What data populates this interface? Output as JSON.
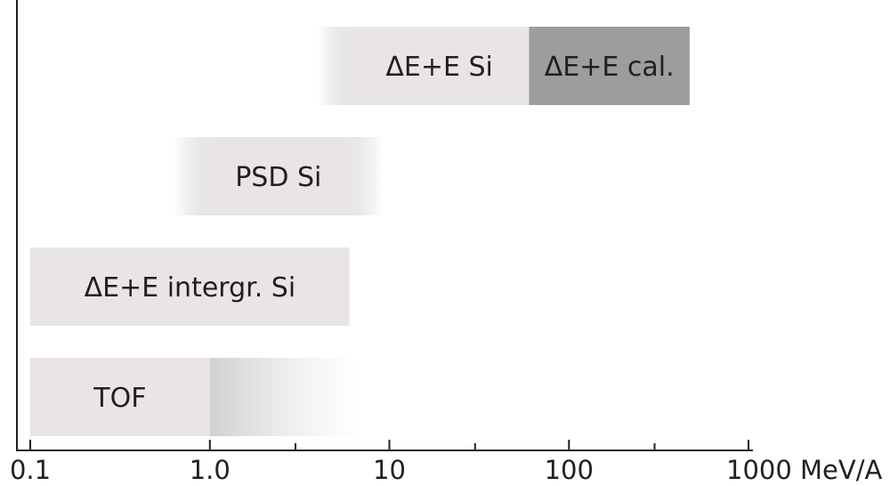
{
  "chart_data": {
    "type": "range-bar",
    "x_scale": "log",
    "xlim": [
      0.1,
      1000
    ],
    "x_ticks": [
      {
        "value": 0.1,
        "label": "0.1"
      },
      {
        "value": 1,
        "label": "1.0"
      },
      {
        "value": 10,
        "label": "10"
      },
      {
        "value": 100,
        "label": "100"
      },
      {
        "value": 1000,
        "label": "1000 MeV/A"
      }
    ],
    "x_minor_ticks": [
      3,
      30,
      300
    ],
    "bars": [
      {
        "label": "ΔE+E Si",
        "segments": [
          {
            "from": 4,
            "to": 6,
            "fill": "fade-in",
            "color": "#e8e4e8"
          },
          {
            "from": 6,
            "to": 60,
            "fill": "solid",
            "color": "#e8e4e8"
          },
          {
            "from": 60,
            "to": 470,
            "fill": "solid",
            "color": "#9d9d9d",
            "label": "ΔE+E cal."
          }
        ]
      },
      {
        "label": "PSD Si",
        "segments": [
          {
            "from": 0.63,
            "to": 1.0,
            "fill": "fade-in",
            "color": "#e8e4e8"
          },
          {
            "from": 1.0,
            "to": 5.8,
            "fill": "solid",
            "color": "#e8e4e8"
          },
          {
            "from": 5.8,
            "to": 9.2,
            "fill": "fade-out",
            "color": "#e8e4e8"
          }
        ]
      },
      {
        "label": "ΔE+E intergr. Si",
        "segments": [
          {
            "from": 0.1,
            "to": 6,
            "fill": "solid",
            "color": "#e8e4e8"
          }
        ]
      },
      {
        "label": "TOF",
        "segments": [
          {
            "from": 0.1,
            "to": 1.0,
            "fill": "solid",
            "color": "#e8e4e8"
          },
          {
            "from": 1.0,
            "to": 6.8,
            "fill": "fade-out",
            "color": "#e8e4e8",
            "shade": "#d0d0d0"
          }
        ]
      }
    ],
    "grid": false,
    "legend": "none"
  }
}
